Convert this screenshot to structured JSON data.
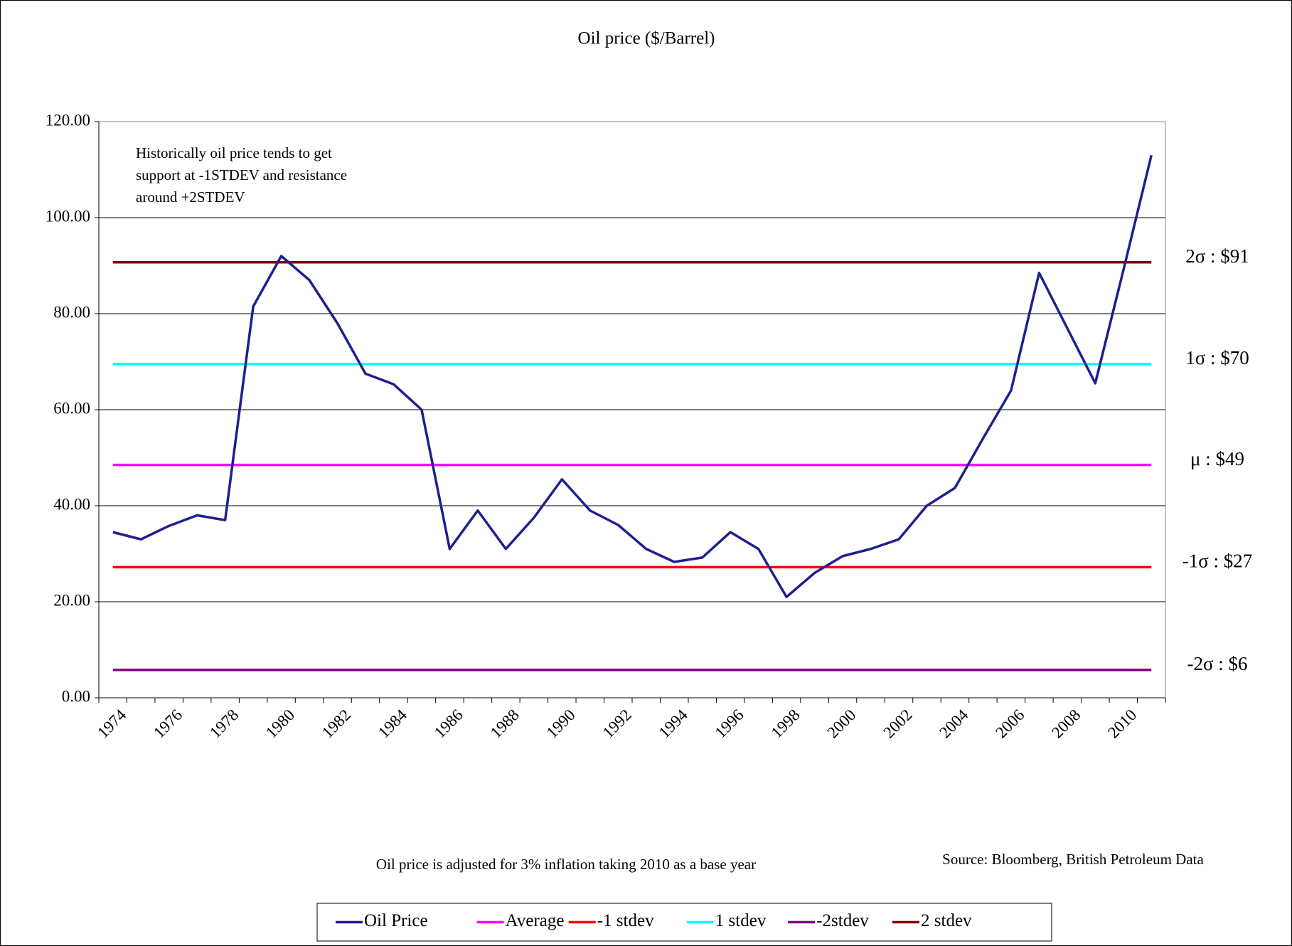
{
  "chart_data": {
    "type": "line",
    "title": "Oil price ($/Barrel)",
    "note": [
      "Historically oil price tends to get",
      "support at -1STDEV  and resistance",
      "around +2STDEV"
    ],
    "footnote": "Oil price is adjusted for 3% inflation taking 2010 as a base year",
    "source": "Source: Bloomberg, British Petroleum Data",
    "categories": [
      "1974",
      null,
      "1976",
      null,
      "1978",
      null,
      "1980",
      null,
      "1982",
      null,
      "1984",
      null,
      "1986",
      null,
      "1988",
      null,
      "1990",
      null,
      "1992",
      null,
      "1994",
      null,
      "1996",
      null,
      "1998",
      null,
      "2000",
      null,
      "2002",
      null,
      "2004",
      null,
      "2006",
      null,
      "2008",
      null,
      "2010",
      null
    ],
    "ylim": [
      0,
      120
    ],
    "yticks": [
      {
        "value": 0,
        "label": "0.00"
      },
      {
        "value": 20,
        "label": "20.00"
      },
      {
        "value": 40,
        "label": "40.00"
      },
      {
        "value": 60,
        "label": "60.00"
      },
      {
        "value": 80,
        "label": "80.00"
      },
      {
        "value": 100,
        "label": "100.00"
      },
      {
        "value": 120,
        "label": "120.00"
      }
    ],
    "grid": true,
    "legend": "bottom",
    "series": [
      {
        "name": "Oil Price",
        "color": "#1f1f8f",
        "values": [
          34.5,
          33,
          35.8,
          38,
          37,
          81.5,
          92,
          87,
          78,
          67.5,
          65.3,
          60,
          31,
          39,
          31,
          37.5,
          45.5,
          39,
          36,
          31,
          28.3,
          29.2,
          34.5,
          31,
          21,
          26,
          29.5,
          31,
          33,
          40,
          43.7,
          54,
          64,
          88.5,
          77,
          65.5,
          89,
          113
        ]
      },
      {
        "name": "Average",
        "color": "#ff00ff",
        "label": "μ : $49",
        "values": [
          48.5,
          48.5,
          48.5,
          48.5,
          48.5,
          48.5,
          48.5,
          48.5,
          48.5,
          48.5,
          48.5,
          48.5,
          48.5,
          48.5,
          48.5,
          48.5,
          48.5,
          48.5,
          48.5,
          48.5,
          48.5,
          48.5,
          48.5,
          48.5,
          48.5,
          48.5,
          48.5,
          48.5,
          48.5,
          48.5,
          48.5,
          48.5,
          48.5,
          48.5,
          48.5,
          48.5,
          48.5,
          48.5
        ]
      },
      {
        "name": "-1 stdev",
        "color": "#ff0000",
        "label": "-1σ : $27",
        "values": [
          27.2,
          27.2,
          27.2,
          27.2,
          27.2,
          27.2,
          27.2,
          27.2,
          27.2,
          27.2,
          27.2,
          27.2,
          27.2,
          27.2,
          27.2,
          27.2,
          27.2,
          27.2,
          27.2,
          27.2,
          27.2,
          27.2,
          27.2,
          27.2,
          27.2,
          27.2,
          27.2,
          27.2,
          27.2,
          27.2,
          27.2,
          27.2,
          27.2,
          27.2,
          27.2,
          27.2,
          27.2,
          27.2
        ]
      },
      {
        "name": "1 stdev",
        "color": "#00ffff",
        "label": "1σ : $70",
        "values": [
          69.5,
          69.5,
          69.5,
          69.5,
          69.5,
          69.5,
          69.5,
          69.5,
          69.5,
          69.5,
          69.5,
          69.5,
          69.5,
          69.5,
          69.5,
          69.5,
          69.5,
          69.5,
          69.5,
          69.5,
          69.5,
          69.5,
          69.5,
          69.5,
          69.5,
          69.5,
          69.5,
          69.5,
          69.5,
          69.5,
          69.5,
          69.5,
          69.5,
          69.5,
          69.5,
          69.5,
          69.5,
          69.5
        ]
      },
      {
        "name": "-2stdev",
        "color": "#800080",
        "label": "-2σ : $6",
        "values": [
          5.8,
          5.8,
          5.8,
          5.8,
          5.8,
          5.8,
          5.8,
          5.8,
          5.8,
          5.8,
          5.8,
          5.8,
          5.8,
          5.8,
          5.8,
          5.8,
          5.8,
          5.8,
          5.8,
          5.8,
          5.8,
          5.8,
          5.8,
          5.8,
          5.8,
          5.8,
          5.8,
          5.8,
          5.8,
          5.8,
          5.8,
          5.8,
          5.8,
          5.8,
          5.8,
          5.8,
          5.8,
          5.8
        ]
      },
      {
        "name": "2 stdev",
        "color": "#800000",
        "label": "2σ : $91",
        "values": [
          90.7,
          90.7,
          90.7,
          90.7,
          90.7,
          90.7,
          90.7,
          90.7,
          90.7,
          90.7,
          90.7,
          90.7,
          90.7,
          90.7,
          90.7,
          90.7,
          90.7,
          90.7,
          90.7,
          90.7,
          90.7,
          90.7,
          90.7,
          90.7,
          90.7,
          90.7,
          90.7,
          90.7,
          90.7,
          90.7,
          90.7,
          90.7,
          90.7,
          90.7,
          90.7,
          90.7,
          90.7,
          90.7
        ]
      }
    ]
  }
}
